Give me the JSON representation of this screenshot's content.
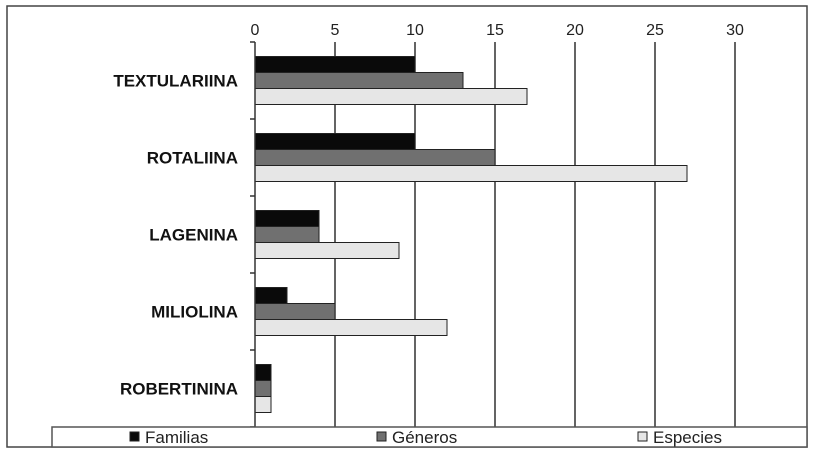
{
  "chart_data": {
    "type": "bar",
    "orientation": "horizontal",
    "x_axis_position": "top",
    "grid": true,
    "legend_position": "bottom",
    "xlim": [
      0,
      30
    ],
    "xticks": [
      "0",
      "5",
      "10",
      "15",
      "20",
      "25",
      "30"
    ],
    "categories": [
      "TEXTULARIINA",
      "ROTALIINA",
      "LAGENINA",
      "MILIOLINA",
      "ROBERTININA"
    ],
    "series": [
      {
        "name": "Familias",
        "color": "#0a0a0a",
        "values": [
          10,
          10,
          4,
          2,
          1
        ]
      },
      {
        "name": "Géneros",
        "color": "#707070",
        "values": [
          13,
          15,
          4,
          5,
          1
        ]
      },
      {
        "name": "Especies",
        "color": "#e6e6e6",
        "values": [
          17,
          27,
          9,
          12,
          1
        ]
      }
    ]
  }
}
